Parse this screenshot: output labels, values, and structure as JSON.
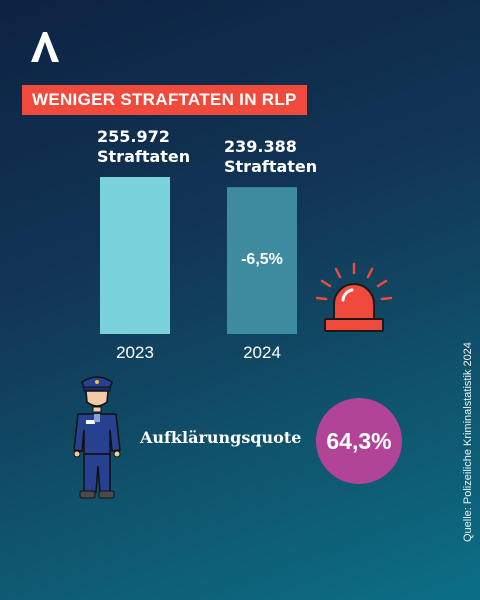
{
  "header": {
    "logo_icon": "broadcaster-logo-icon",
    "title": "WENIGER STRAFTATEN IN RLP"
  },
  "chart_data": {
    "type": "bar",
    "categories": [
      "2023",
      "2024"
    ],
    "values": [
      255972,
      239388
    ],
    "value_labels": [
      {
        "number": "255.972",
        "unit": "Straftaten"
      },
      {
        "number": "239.388",
        "unit": "Straftaten"
      }
    ],
    "annotations": [
      {
        "category": "2024",
        "text": "-6,5%"
      }
    ],
    "bar_colors": [
      "#79d2dc",
      "#3f8ba0"
    ],
    "grid": false
  },
  "icons": {
    "siren": "siren-icon",
    "police_officer": "police-officer-icon"
  },
  "colors": {
    "banner": "#ef4a3c",
    "quote_circle": "#b24497"
  },
  "clearance": {
    "label": "Aufklärungsquote",
    "value": "64,3%"
  },
  "source": "Quelle: Polizeiliche Kriminalstatistik 2024"
}
